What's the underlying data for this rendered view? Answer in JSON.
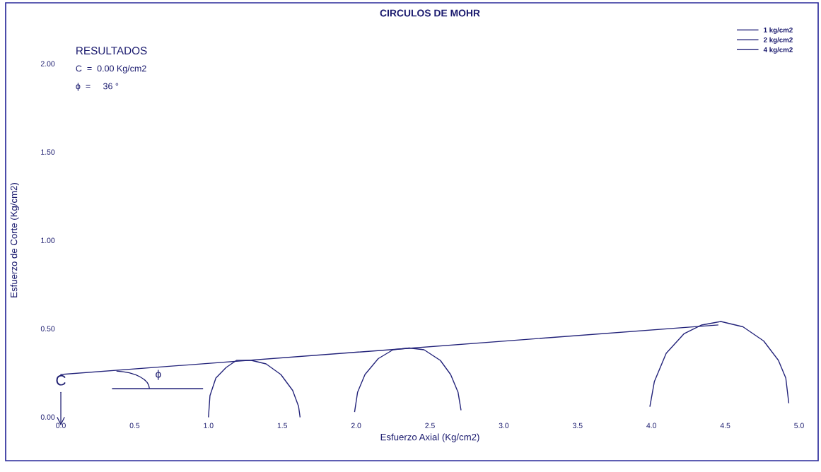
{
  "chart_data": {
    "type": "line",
    "title": "CIRCULOS DE MOHR",
    "xlabel": "Esfuerzo Axial (Kg/cm2)",
    "ylabel": "Esfuerzo de Corte (Kg/cm2)",
    "xticks": [
      {
        "value": 0,
        "label": "0.0"
      },
      {
        "value": 0.5,
        "label": "0.5"
      },
      {
        "value": 1,
        "label": "1.0"
      },
      {
        "value": 1.5,
        "label": "1.5"
      },
      {
        "value": 2,
        "label": "2.0"
      },
      {
        "value": 2.5,
        "label": "2.5"
      },
      {
        "value": 3,
        "label": "3.0"
      },
      {
        "value": 3.5,
        "label": "3.5"
      },
      {
        "value": 4,
        "label": "4.0"
      },
      {
        "value": 4.5,
        "label": "4.5"
      },
      {
        "value": 5,
        "label": "5.0"
      }
    ],
    "yticks": [
      {
        "value": 0,
        "label": "0.00"
      },
      {
        "value": 0.5,
        "label": "0.50"
      },
      {
        "value": 1,
        "label": "1.00"
      },
      {
        "value": 1.5,
        "label": "1.50"
      },
      {
        "value": 2,
        "label": "2.00"
      }
    ],
    "xlim": [
      0,
      5
    ],
    "ylim": [
      0,
      2
    ],
    "grid": false,
    "legend": "top right",
    "marker": "none",
    "line_style": "solid",
    "series": [
      {
        "name": "1 kg/cm2",
        "color": "#23237a",
        "x": [
          1.0,
          1.01,
          1.05,
          1.12,
          1.19,
          1.29,
          1.39,
          1.49,
          1.57,
          1.61,
          1.62
        ],
        "values": [
          0.0,
          0.12,
          0.22,
          0.28,
          0.32,
          0.32,
          0.3,
          0.24,
          0.15,
          0.06,
          0.0
        ]
      },
      {
        "name": "2 kg/cm2",
        "color": "#23237a",
        "x": [
          1.99,
          2.01,
          2.06,
          2.15,
          2.25,
          2.36,
          2.46,
          2.57,
          2.64,
          2.69,
          2.71
        ],
        "values": [
          0.03,
          0.14,
          0.24,
          0.33,
          0.38,
          0.39,
          0.38,
          0.32,
          0.24,
          0.14,
          0.04
        ]
      },
      {
        "name": "4 kg/cm2",
        "color": "#23237a",
        "x": [
          3.99,
          4.02,
          4.1,
          4.22,
          4.34,
          4.47,
          4.62,
          4.76,
          4.86,
          4.91,
          4.93
        ],
        "values": [
          0.06,
          0.2,
          0.36,
          0.47,
          0.52,
          0.54,
          0.51,
          0.43,
          0.32,
          0.22,
          0.08
        ]
      },
      {
        "color": "#23237a",
        "x": [
          0,
          4.45
        ],
        "values": [
          0.24,
          0.52
        ]
      },
      {
        "color": "#23237a",
        "x": [
          0.35,
          0.96
        ],
        "values": [
          0.16,
          0.16
        ]
      }
    ],
    "annotations": [
      "RESULTADOS",
      "C  =  0.00 Kg/cm2",
      "ϕ  =     36 °",
      "C",
      {
        "text": "ϕ",
        "x": 0.66,
        "y": 0.16
      }
    ]
  }
}
